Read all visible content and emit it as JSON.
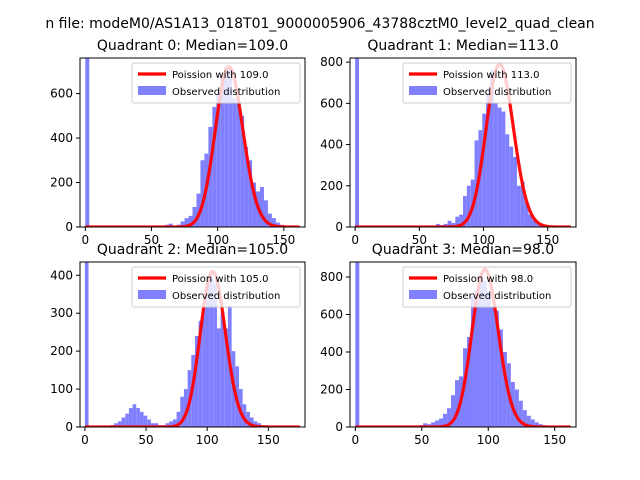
{
  "figure": {
    "suptitle": "n file: modeM0/AS1A13_018T01_9000005906_43788cztM0_level2_quad_clean"
  },
  "colors": {
    "hist": "#8080ff",
    "poisson": "#ff0000",
    "axis": "#000000"
  },
  "chart_data": [
    {
      "type": "bar",
      "title": "Quadrant 0: Median=109.0",
      "xlim": [
        -4,
        166
      ],
      "ylim": [
        0,
        760
      ],
      "xticks": [
        0,
        50,
        100,
        150
      ],
      "yticks": [
        0,
        200,
        400,
        600
      ],
      "legend": {
        "placement": "top-right",
        "entries": [
          "Poission with 109.0",
          "Observed distribution"
        ]
      },
      "median": 109,
      "poisson_scale": 720,
      "bin_edges": [
        0,
        3,
        6,
        9,
        12,
        15,
        18,
        21,
        24,
        27,
        30,
        33,
        36,
        39,
        42,
        45,
        48,
        51,
        54,
        57,
        60,
        63,
        66,
        69,
        72,
        75,
        78,
        81,
        84,
        87,
        90,
        93,
        96,
        99,
        102,
        105,
        108,
        111,
        114,
        117,
        120,
        123,
        126,
        129,
        132,
        135,
        138,
        141,
        144,
        147,
        150,
        153,
        156,
        159,
        162
      ],
      "counts": [
        760,
        0,
        0,
        0,
        0,
        0,
        0,
        0,
        0,
        0,
        0,
        0,
        0,
        0,
        0,
        0,
        0,
        0,
        0,
        0,
        10,
        15,
        5,
        10,
        25,
        40,
        50,
        90,
        150,
        300,
        330,
        450,
        540,
        600,
        680,
        720,
        710,
        580,
        560,
        500,
        360,
        300,
        200,
        160,
        180,
        120,
        60,
        40,
        20,
        10,
        5,
        0,
        0,
        0
      ]
    },
    {
      "type": "bar",
      "title": "Quadrant 1: Median=113.0",
      "xlim": [
        -4,
        172
      ],
      "ylim": [
        0,
        820
      ],
      "xticks": [
        0,
        50,
        100,
        150
      ],
      "yticks": [
        0,
        200,
        400,
        600,
        800
      ],
      "legend": {
        "placement": "top-right",
        "entries": [
          "Poission with 113.0",
          "Observed distribution"
        ]
      },
      "median": 113,
      "poisson_scale": 790,
      "bin_edges": [
        0,
        3,
        6,
        9,
        12,
        15,
        18,
        21,
        24,
        27,
        30,
        33,
        36,
        39,
        42,
        45,
        48,
        51,
        54,
        57,
        60,
        63,
        66,
        69,
        72,
        75,
        78,
        81,
        84,
        87,
        90,
        93,
        96,
        99,
        102,
        105,
        108,
        111,
        114,
        117,
        120,
        123,
        126,
        129,
        132,
        135,
        138,
        141,
        144,
        147,
        150,
        153,
        156,
        159,
        162,
        165,
        168
      ],
      "counts": [
        820,
        0,
        0,
        0,
        0,
        0,
        0,
        0,
        0,
        0,
        0,
        0,
        0,
        0,
        0,
        0,
        0,
        0,
        0,
        0,
        0,
        15,
        10,
        15,
        30,
        20,
        50,
        60,
        150,
        200,
        230,
        420,
        470,
        550,
        650,
        760,
        600,
        580,
        560,
        450,
        390,
        340,
        200,
        220,
        120,
        60,
        40,
        20,
        10,
        5,
        0,
        0,
        0,
        0,
        0,
        0
      ]
    },
    {
      "type": "bar",
      "title": "Quadrant 2: Median=105.0",
      "xlim": [
        -4,
        180
      ],
      "ylim": [
        0,
        435
      ],
      "xticks": [
        0,
        50,
        100,
        150
      ],
      "yticks": [
        0,
        100,
        200,
        300,
        400
      ],
      "legend": {
        "placement": "top-right",
        "entries": [
          "Poission with 105.0",
          "Observed distribution"
        ]
      },
      "median": 105,
      "poisson_scale": 410,
      "bin_edges": [
        0,
        3,
        6,
        9,
        12,
        15,
        18,
        21,
        24,
        27,
        30,
        33,
        36,
        39,
        42,
        45,
        48,
        51,
        54,
        57,
        60,
        63,
        66,
        69,
        72,
        75,
        78,
        81,
        84,
        87,
        90,
        93,
        96,
        99,
        102,
        105,
        108,
        111,
        114,
        117,
        120,
        123,
        126,
        129,
        132,
        135,
        138,
        141,
        144,
        147,
        150,
        153,
        156,
        159,
        162,
        165,
        168,
        171,
        174
      ],
      "counts": [
        435,
        0,
        0,
        0,
        0,
        0,
        0,
        5,
        10,
        15,
        25,
        35,
        50,
        60,
        50,
        40,
        30,
        20,
        10,
        10,
        5,
        5,
        10,
        15,
        20,
        40,
        80,
        100,
        150,
        190,
        240,
        280,
        320,
        380,
        410,
        380,
        260,
        300,
        260,
        320,
        200,
        160,
        100,
        60,
        40,
        25,
        15,
        10,
        5,
        5,
        0,
        0,
        0,
        0,
        0,
        0,
        0,
        0
      ]
    },
    {
      "type": "bar",
      "title": "Quadrant 3: Median=98.0",
      "xlim": [
        -4,
        166
      ],
      "ylim": [
        0,
        880
      ],
      "xticks": [
        0,
        50,
        100,
        150
      ],
      "yticks": [
        0,
        200,
        400,
        600,
        800
      ],
      "legend": {
        "placement": "top-right",
        "entries": [
          "Poission with 98.0",
          "Observed distribution"
        ]
      },
      "median": 98,
      "poisson_scale": 840,
      "bin_edges": [
        0,
        3,
        6,
        9,
        12,
        15,
        18,
        21,
        24,
        27,
        30,
        33,
        36,
        39,
        42,
        45,
        48,
        51,
        54,
        57,
        60,
        63,
        66,
        69,
        72,
        75,
        78,
        81,
        84,
        87,
        90,
        93,
        96,
        99,
        102,
        105,
        108,
        111,
        114,
        117,
        120,
        123,
        126,
        129,
        132,
        135,
        138,
        141,
        144,
        147,
        150,
        153,
        156,
        159,
        162
      ],
      "counts": [
        880,
        0,
        0,
        0,
        0,
        0,
        0,
        0,
        0,
        0,
        0,
        0,
        0,
        0,
        0,
        0,
        10,
        20,
        15,
        25,
        35,
        45,
        70,
        100,
        170,
        250,
        270,
        420,
        480,
        700,
        730,
        820,
        780,
        720,
        640,
        620,
        520,
        400,
        340,
        240,
        200,
        140,
        90,
        60,
        40,
        25,
        15,
        10,
        5,
        0,
        0,
        0,
        0,
        0
      ]
    }
  ]
}
